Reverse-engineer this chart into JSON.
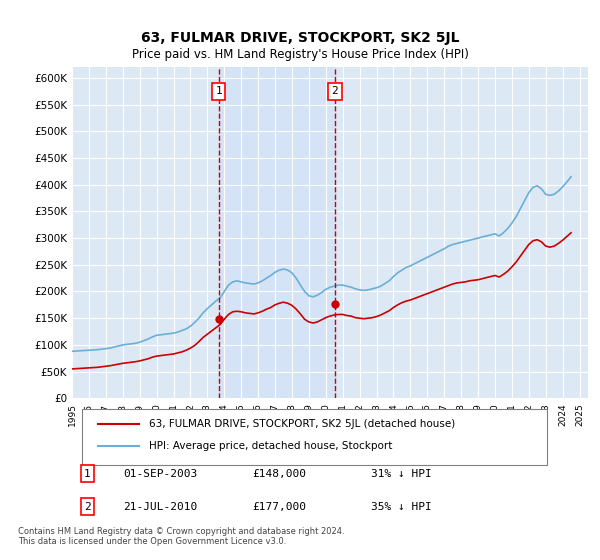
{
  "title": "63, FULMAR DRIVE, STOCKPORT, SK2 5JL",
  "subtitle": "Price paid vs. HM Land Registry's House Price Index (HPI)",
  "background_color": "#ffffff",
  "plot_bg_color": "#dce9f5",
  "grid_color": "#ffffff",
  "ylabel": "",
  "xlabel": "",
  "ylim": [
    0,
    620000
  ],
  "yticks": [
    0,
    50000,
    100000,
    150000,
    200000,
    250000,
    300000,
    350000,
    400000,
    450000,
    500000,
    550000,
    600000
  ],
  "ytick_labels": [
    "£0",
    "£50K",
    "£100K",
    "£150K",
    "£200K",
    "£250K",
    "£300K",
    "£350K",
    "£400K",
    "£450K",
    "£500K",
    "£550K",
    "£600K"
  ],
  "xlim_start": 1995.0,
  "xlim_end": 2025.5,
  "hpi_color": "#6baed6",
  "price_color": "#cc0000",
  "marker_color": "#cc0000",
  "sale1_x": 2003.67,
  "sale1_y": 148000,
  "sale1_label": "1",
  "sale2_x": 2010.54,
  "sale2_y": 177000,
  "sale2_label": "2",
  "legend_line1": "63, FULMAR DRIVE, STOCKPORT, SK2 5JL (detached house)",
  "legend_line2": "HPI: Average price, detached house, Stockport",
  "table_row1": [
    "1",
    "01-SEP-2003",
    "£148,000",
    "31% ↓ HPI"
  ],
  "table_row2": [
    "2",
    "21-JUL-2010",
    "£177,000",
    "35% ↓ HPI"
  ],
  "footnote": "Contains HM Land Registry data © Crown copyright and database right 2024.\nThis data is licensed under the Open Government Licence v3.0.",
  "hpi_data": {
    "years": [
      1995.0,
      1995.25,
      1995.5,
      1995.75,
      1996.0,
      1996.25,
      1996.5,
      1996.75,
      1997.0,
      1997.25,
      1997.5,
      1997.75,
      1998.0,
      1998.25,
      1998.5,
      1998.75,
      1999.0,
      1999.25,
      1999.5,
      1999.75,
      2000.0,
      2000.25,
      2000.5,
      2000.75,
      2001.0,
      2001.25,
      2001.5,
      2001.75,
      2002.0,
      2002.25,
      2002.5,
      2002.75,
      2003.0,
      2003.25,
      2003.5,
      2003.75,
      2004.0,
      2004.25,
      2004.5,
      2004.75,
      2005.0,
      2005.25,
      2005.5,
      2005.75,
      2006.0,
      2006.25,
      2006.5,
      2006.75,
      2007.0,
      2007.25,
      2007.5,
      2007.75,
      2008.0,
      2008.25,
      2008.5,
      2008.75,
      2009.0,
      2009.25,
      2009.5,
      2009.75,
      2010.0,
      2010.25,
      2010.5,
      2010.75,
      2011.0,
      2011.25,
      2011.5,
      2011.75,
      2012.0,
      2012.25,
      2012.5,
      2012.75,
      2013.0,
      2013.25,
      2013.5,
      2013.75,
      2014.0,
      2014.25,
      2014.5,
      2014.75,
      2015.0,
      2015.25,
      2015.5,
      2015.75,
      2016.0,
      2016.25,
      2016.5,
      2016.75,
      2017.0,
      2017.25,
      2017.5,
      2017.75,
      2018.0,
      2018.25,
      2018.5,
      2018.75,
      2019.0,
      2019.25,
      2019.5,
      2019.75,
      2020.0,
      2020.25,
      2020.5,
      2020.75,
      2021.0,
      2021.25,
      2021.5,
      2021.75,
      2022.0,
      2022.25,
      2022.5,
      2022.75,
      2023.0,
      2023.25,
      2023.5,
      2023.75,
      2024.0,
      2024.25,
      2024.5
    ],
    "values": [
      88000,
      88500,
      89000,
      89500,
      90000,
      90500,
      91000,
      92000,
      93000,
      94000,
      96000,
      98000,
      100000,
      101000,
      102000,
      103000,
      105000,
      108000,
      111000,
      115000,
      118000,
      119000,
      120000,
      121000,
      122000,
      124000,
      127000,
      130000,
      135000,
      142000,
      150000,
      160000,
      168000,
      175000,
      182000,
      188000,
      200000,
      212000,
      218000,
      220000,
      218000,
      216000,
      215000,
      214000,
      216000,
      220000,
      225000,
      230000,
      236000,
      240000,
      242000,
      240000,
      235000,
      225000,
      212000,
      200000,
      192000,
      190000,
      193000,
      198000,
      204000,
      208000,
      210000,
      212000,
      212000,
      210000,
      208000,
      205000,
      203000,
      202000,
      203000,
      205000,
      207000,
      210000,
      215000,
      220000,
      228000,
      235000,
      240000,
      245000,
      248000,
      252000,
      256000,
      260000,
      264000,
      268000,
      272000,
      276000,
      280000,
      285000,
      288000,
      290000,
      292000,
      294000,
      296000,
      298000,
      300000,
      302000,
      304000,
      306000,
      308000,
      304000,
      310000,
      318000,
      328000,
      340000,
      355000,
      370000,
      385000,
      395000,
      398000,
      392000,
      382000,
      380000,
      382000,
      388000,
      396000,
      405000,
      415000
    ]
  },
  "price_data": {
    "years": [
      1995.0,
      1995.25,
      1995.5,
      1995.75,
      1996.0,
      1996.25,
      1996.5,
      1996.75,
      1997.0,
      1997.25,
      1997.5,
      1997.75,
      1998.0,
      1998.25,
      1998.5,
      1998.75,
      1999.0,
      1999.25,
      1999.5,
      1999.75,
      2000.0,
      2000.25,
      2000.5,
      2000.75,
      2001.0,
      2001.25,
      2001.5,
      2001.75,
      2002.0,
      2002.25,
      2002.5,
      2002.75,
      2003.0,
      2003.25,
      2003.5,
      2003.75,
      2004.0,
      2004.25,
      2004.5,
      2004.75,
      2005.0,
      2005.25,
      2005.5,
      2005.75,
      2006.0,
      2006.25,
      2006.5,
      2006.75,
      2007.0,
      2007.25,
      2007.5,
      2007.75,
      2008.0,
      2008.25,
      2008.5,
      2008.75,
      2009.0,
      2009.25,
      2009.5,
      2009.75,
      2010.0,
      2010.25,
      2010.5,
      2010.75,
      2011.0,
      2011.25,
      2011.5,
      2011.75,
      2012.0,
      2012.25,
      2012.5,
      2012.75,
      2013.0,
      2013.25,
      2013.5,
      2013.75,
      2014.0,
      2014.25,
      2014.5,
      2014.75,
      2015.0,
      2015.25,
      2015.5,
      2015.75,
      2016.0,
      2016.25,
      2016.5,
      2016.75,
      2017.0,
      2017.25,
      2017.5,
      2017.75,
      2018.0,
      2018.25,
      2018.5,
      2018.75,
      2019.0,
      2019.25,
      2019.5,
      2019.75,
      2020.0,
      2020.25,
      2020.5,
      2020.75,
      2021.0,
      2021.25,
      2021.5,
      2021.75,
      2022.0,
      2022.25,
      2022.5,
      2022.75,
      2023.0,
      2023.25,
      2023.5,
      2023.75,
      2024.0,
      2024.25,
      2024.5
    ],
    "values": [
      55000,
      55500,
      56000,
      56500,
      57000,
      57500,
      58000,
      59000,
      60000,
      61000,
      62500,
      64000,
      65500,
      66500,
      67500,
      68500,
      70000,
      72000,
      74000,
      77000,
      79000,
      80000,
      81000,
      82000,
      83000,
      85000,
      87000,
      90000,
      94000,
      99000,
      106000,
      114000,
      120000,
      126000,
      132000,
      138000,
      148000,
      157000,
      162000,
      163000,
      162000,
      160000,
      159000,
      158000,
      160000,
      163000,
      167000,
      170000,
      175000,
      178000,
      180000,
      178000,
      174000,
      167000,
      158000,
      148000,
      143000,
      141000,
      143000,
      147000,
      151000,
      154000,
      156000,
      157000,
      157000,
      155000,
      154000,
      151000,
      150000,
      149000,
      150000,
      151000,
      153000,
      156000,
      160000,
      164000,
      170000,
      175000,
      179000,
      182000,
      184000,
      187000,
      190000,
      193000,
      196000,
      199000,
      202000,
      205000,
      208000,
      211000,
      214000,
      216000,
      217000,
      218000,
      220000,
      221000,
      222000,
      224000,
      226000,
      228000,
      230000,
      227000,
      232000,
      238000,
      246000,
      255000,
      266000,
      277000,
      288000,
      295000,
      297000,
      293000,
      285000,
      283000,
      285000,
      290000,
      296000,
      303000,
      310000
    ]
  }
}
